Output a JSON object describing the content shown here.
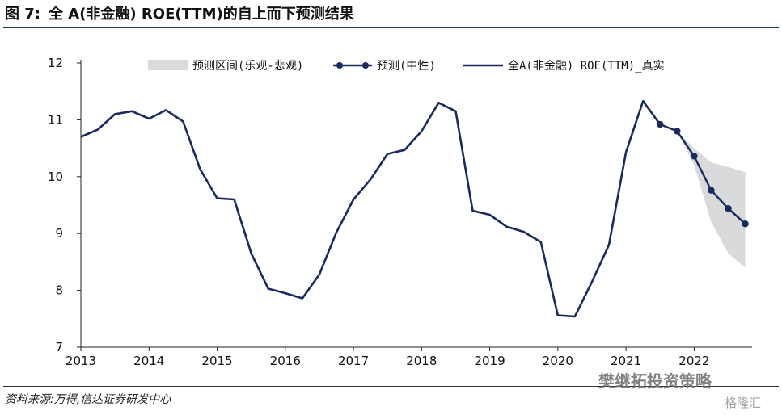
{
  "figure": {
    "label": "图 7:",
    "title": "全 A(非金融) ROE(TTM)的自上而下预测结果",
    "source": "资料来源:万得,信达证券研发中心",
    "watermark_wechat": "樊继拓投资策略",
    "watermark_gelonghui": "格隆汇"
  },
  "colors": {
    "line": "#1b2a5c",
    "band": "#d9dadc",
    "accent": "#1f3a6e"
  },
  "chart_data": {
    "type": "line",
    "title": "全 A(非金融) ROE(TTM)的自上而下预测结果",
    "xlabel": "",
    "ylabel": "",
    "xlim": [
      2013,
      2022.85
    ],
    "ylim": [
      7,
      12
    ],
    "x_ticks": [
      "2013",
      "2014",
      "2015",
      "2016",
      "2017",
      "2018",
      "2019",
      "2020",
      "2021",
      "2022"
    ],
    "y_ticks": [
      "7",
      "8",
      "9",
      "10",
      "11",
      "12"
    ],
    "legend": {
      "placement": "top",
      "entries": [
        "预测区间(乐观-悲观)",
        "预测(中性)",
        "全A(非金融) ROE(TTM)_真实"
      ]
    },
    "series": [
      {
        "name": "全A(非金融) ROE(TTM)_真实",
        "style": "line",
        "x": [
          2013.0,
          2013.25,
          2013.5,
          2013.75,
          2014.0,
          2014.25,
          2014.5,
          2014.75,
          2015.0,
          2015.25,
          2015.5,
          2015.75,
          2016.0,
          2016.25,
          2016.5,
          2016.75,
          2017.0,
          2017.25,
          2017.5,
          2017.75,
          2018.0,
          2018.25,
          2018.5,
          2018.75,
          2019.0,
          2019.25,
          2019.5,
          2019.75,
          2020.0,
          2020.25,
          2020.5,
          2020.75,
          2021.0,
          2021.25,
          2021.5
        ],
        "values": [
          10.7,
          10.83,
          11.1,
          11.15,
          11.02,
          11.17,
          10.97,
          10.13,
          9.62,
          9.6,
          8.65,
          8.03,
          7.95,
          7.86,
          8.28,
          9.02,
          9.6,
          9.95,
          10.4,
          10.47,
          10.8,
          11.3,
          11.15,
          9.4,
          9.33,
          9.12,
          9.03,
          8.85,
          7.56,
          7.54,
          8.15,
          8.8,
          10.43,
          11.33,
          10.92
        ]
      },
      {
        "name": "预测(中性)",
        "style": "line-marker",
        "x": [
          2021.5,
          2021.75,
          2022.0,
          2022.25,
          2022.5,
          2022.75
        ],
        "values": [
          10.92,
          10.8,
          10.36,
          9.76,
          9.44,
          9.17
        ]
      },
      {
        "name": "预测区间(乐观-悲观)",
        "style": "band",
        "x": [
          2021.5,
          2021.75,
          2022.0,
          2022.25,
          2022.5,
          2022.75
        ],
        "upper": [
          10.92,
          10.8,
          10.5,
          10.25,
          10.17,
          10.08
        ],
        "lower": [
          10.92,
          10.8,
          10.2,
          9.2,
          8.65,
          8.4
        ]
      }
    ]
  }
}
